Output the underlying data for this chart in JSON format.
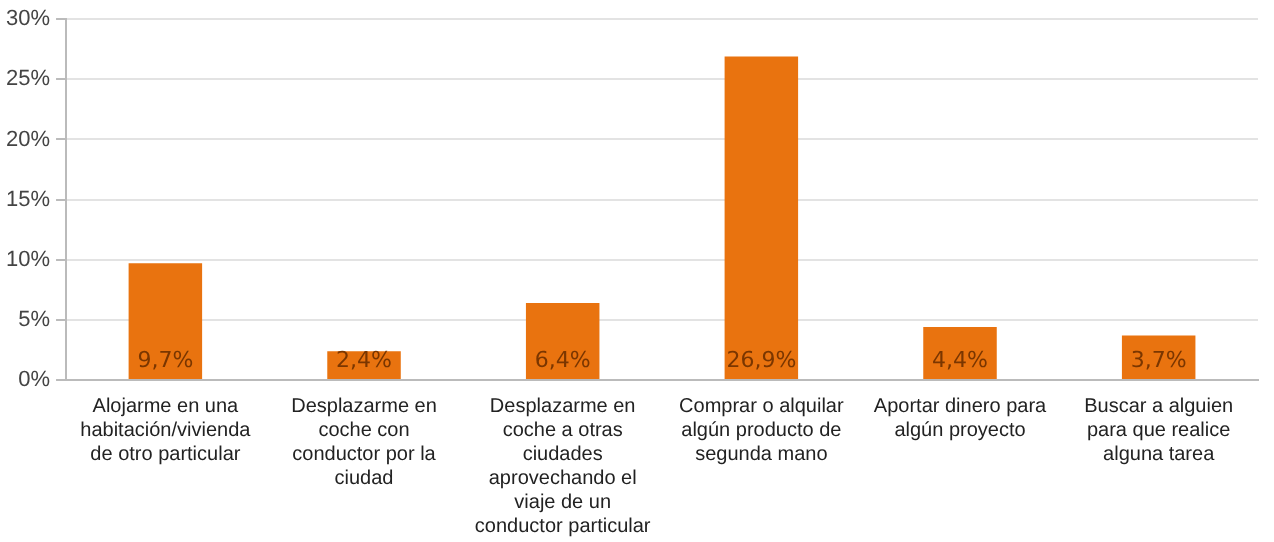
{
  "chart_data": {
    "type": "bar",
    "categories": [
      "Alojarme en una habitación/vivienda de otro particular",
      "Desplazarme en coche con conductor por la ciudad",
      "Desplazarme en coche a otras ciudades aprovechando el viaje de un conductor particular",
      "Comprar o alquilar algún producto de segunda mano",
      "Aportar dinero para algún proyecto",
      "Buscar a alguien para que realice alguna tarea"
    ],
    "values": [
      9.7,
      2.4,
      6.4,
      26.9,
      4.4,
      3.7
    ],
    "value_labels": [
      "9,7%",
      "2,4%",
      "6,4%",
      "26,9%",
      "4,4%",
      "3,7%"
    ],
    "color": "#e9730f",
    "ylim": [
      0,
      30
    ],
    "yticks": [
      {
        "value": 0,
        "label": "0%"
      },
      {
        "value": 5,
        "label": "5%"
      },
      {
        "value": 10,
        "label": "10%"
      },
      {
        "value": 15,
        "label": "15%"
      },
      {
        "value": 20,
        "label": "20%"
      },
      {
        "value": 25,
        "label": "25%"
      },
      {
        "value": 30,
        "label": "30%"
      }
    ],
    "grid": "y",
    "legend": false
  }
}
